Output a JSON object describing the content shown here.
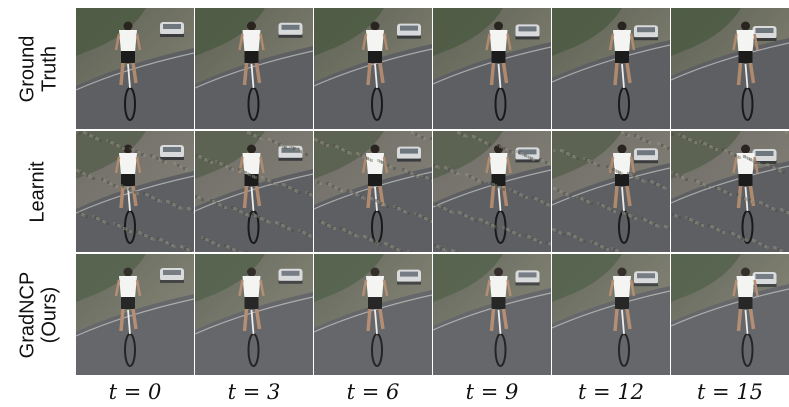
{
  "rows": [
    {
      "label": "Ground\nTruth",
      "quality": "clean"
    },
    {
      "label": "Learnit",
      "quality": "noisy"
    },
    {
      "label": "GradNCP\n(Ours)",
      "quality": "smooth"
    }
  ],
  "columns": [
    "t = 0",
    "t = 3",
    "t = 6",
    "t = 9",
    "t = 12",
    "t = 15"
  ]
}
